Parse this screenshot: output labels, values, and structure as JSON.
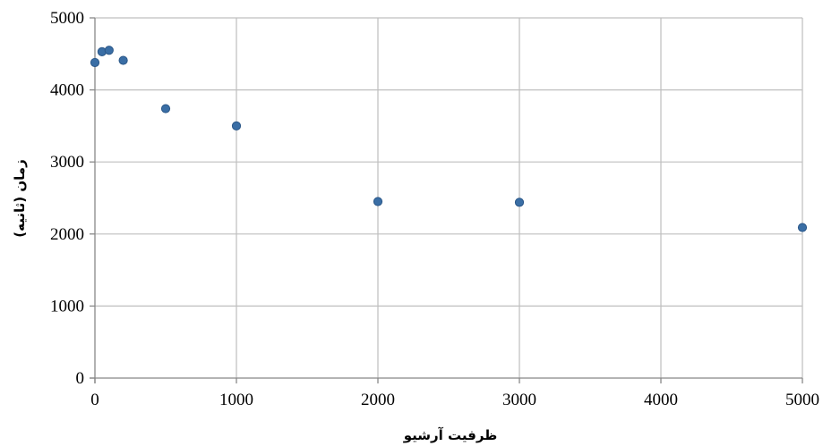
{
  "chart_data": {
    "type": "scatter",
    "xlabel": "ظرفیت آرشیو",
    "ylabel": "زمان (ثانیه)",
    "xlim": [
      0,
      5000
    ],
    "ylim": [
      0,
      5000
    ],
    "x_ticks": [
      "0",
      "1000",
      "2000",
      "3000",
      "4000",
      "5000"
    ],
    "y_ticks": [
      "0",
      "1000",
      "2000",
      "3000",
      "4000",
      "5000"
    ],
    "grid": true,
    "legend": false,
    "marker_color": "#3A6EA5",
    "marker_edge_color": "#2B5788",
    "grid_color": "#BFBFBF",
    "points": [
      {
        "x": 0,
        "y": 4380
      },
      {
        "x": 50,
        "y": 4530
      },
      {
        "x": 100,
        "y": 4550
      },
      {
        "x": 200,
        "y": 4410
      },
      {
        "x": 500,
        "y": 3740
      },
      {
        "x": 1000,
        "y": 3500
      },
      {
        "x": 2000,
        "y": 2450
      },
      {
        "x": 3000,
        "y": 2440
      },
      {
        "x": 5000,
        "y": 2090
      }
    ]
  }
}
